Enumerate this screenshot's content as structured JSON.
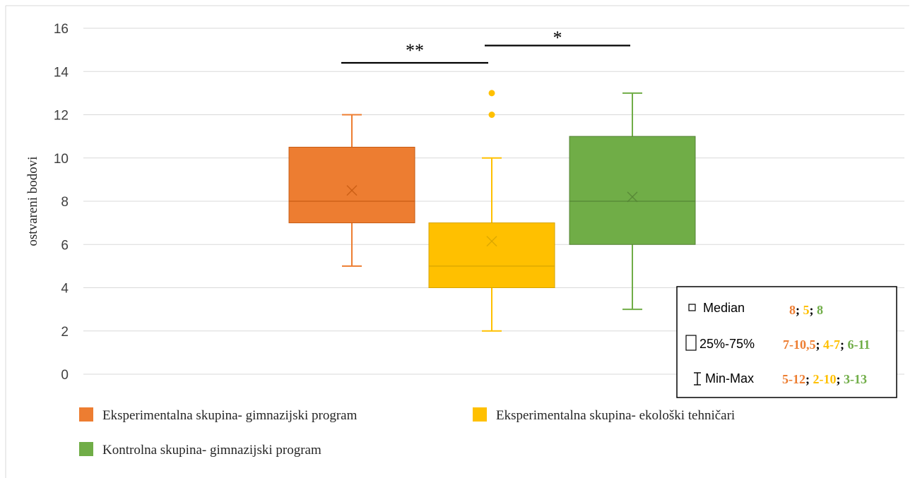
{
  "chart_data": {
    "type": "boxplot",
    "ylabel": "ostvareni bodovi",
    "ylim": [
      0,
      16
    ],
    "yticks": [
      0,
      2,
      4,
      6,
      8,
      10,
      12,
      14,
      16
    ],
    "grid": true,
    "series": [
      {
        "name": "Eksperimentalna skupina- gimnazijski program",
        "color": "#ED7D31",
        "min": 5,
        "q1": 7,
        "median": 8,
        "q3": 10.5,
        "max": 12,
        "mean": 8.5,
        "outliers": []
      },
      {
        "name": "Eksperimentalna skupina- ekološki tehničari",
        "color": "#FFC000",
        "min": 2,
        "q1": 4,
        "median": 5,
        "q3": 7,
        "max": 10,
        "mean": 6.15,
        "outliers": [
          12,
          13
        ]
      },
      {
        "name": "Kontrolna skupina- gimnazijski program",
        "color": "#70AD47",
        "min": 3,
        "q1": 6,
        "median": 8,
        "q3": 11,
        "max": 13,
        "mean": 8.2,
        "outliers": []
      }
    ],
    "significance": [
      {
        "label": "**",
        "from": 0,
        "to": 1,
        "y": 14.4
      },
      {
        "label": "*",
        "from": 1,
        "to": 2,
        "y": 15.2
      }
    ],
    "legend_position": "bottom",
    "summary_box": {
      "position": "bottom-right",
      "rows": [
        {
          "label": "Median",
          "values": [
            "8",
            "5",
            "8"
          ]
        },
        {
          "label": "25%-75%",
          "values": [
            "7-10,5",
            "4-7",
            "6-11"
          ]
        },
        {
          "label": "Min-Max",
          "values": [
            "5-12",
            "2-10",
            "3-13"
          ]
        }
      ]
    }
  }
}
